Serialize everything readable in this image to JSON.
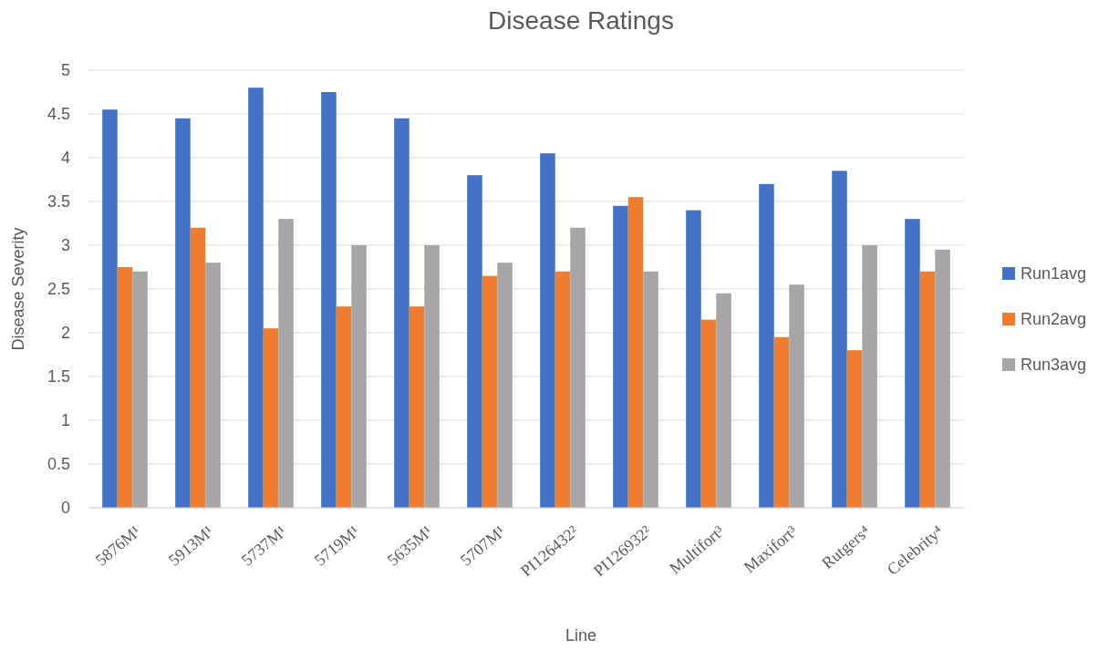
{
  "chart_data": {
    "type": "bar",
    "title": "Disease Ratings",
    "xlabel": "Line",
    "ylabel": "Disease Severity",
    "categories": [
      "5876M¹",
      "5913M¹",
      "5737M¹",
      "5719M¹",
      "5635M¹",
      "5707M¹",
      "PI126432²",
      "PI126932²",
      "Multifort³",
      "Maxifort³",
      "Rutgers⁴",
      "Celebrity⁴"
    ],
    "series": [
      {
        "name": "Run1avg",
        "color": "#4472c4",
        "values": [
          4.55,
          4.45,
          4.8,
          4.75,
          4.45,
          3.8,
          4.05,
          3.45,
          3.4,
          3.7,
          3.85,
          3.3
        ]
      },
      {
        "name": "Run2avg",
        "color": "#ed7d31",
        "values": [
          2.75,
          3.2,
          2.05,
          2.3,
          2.3,
          2.65,
          2.7,
          3.55,
          2.15,
          1.95,
          1.8,
          2.7
        ]
      },
      {
        "name": "Run3avg",
        "color": "#a5a5a5",
        "values": [
          2.7,
          2.8,
          3.3,
          3.0,
          3.0,
          2.8,
          3.2,
          2.7,
          2.45,
          2.55,
          3.0,
          2.95
        ]
      }
    ],
    "ylim": [
      0,
      5
    ],
    "yticks": [
      0,
      0.5,
      1,
      1.5,
      2,
      2.5,
      3,
      3.5,
      4,
      4.5,
      5
    ],
    "grid": "y",
    "legend": "right"
  }
}
